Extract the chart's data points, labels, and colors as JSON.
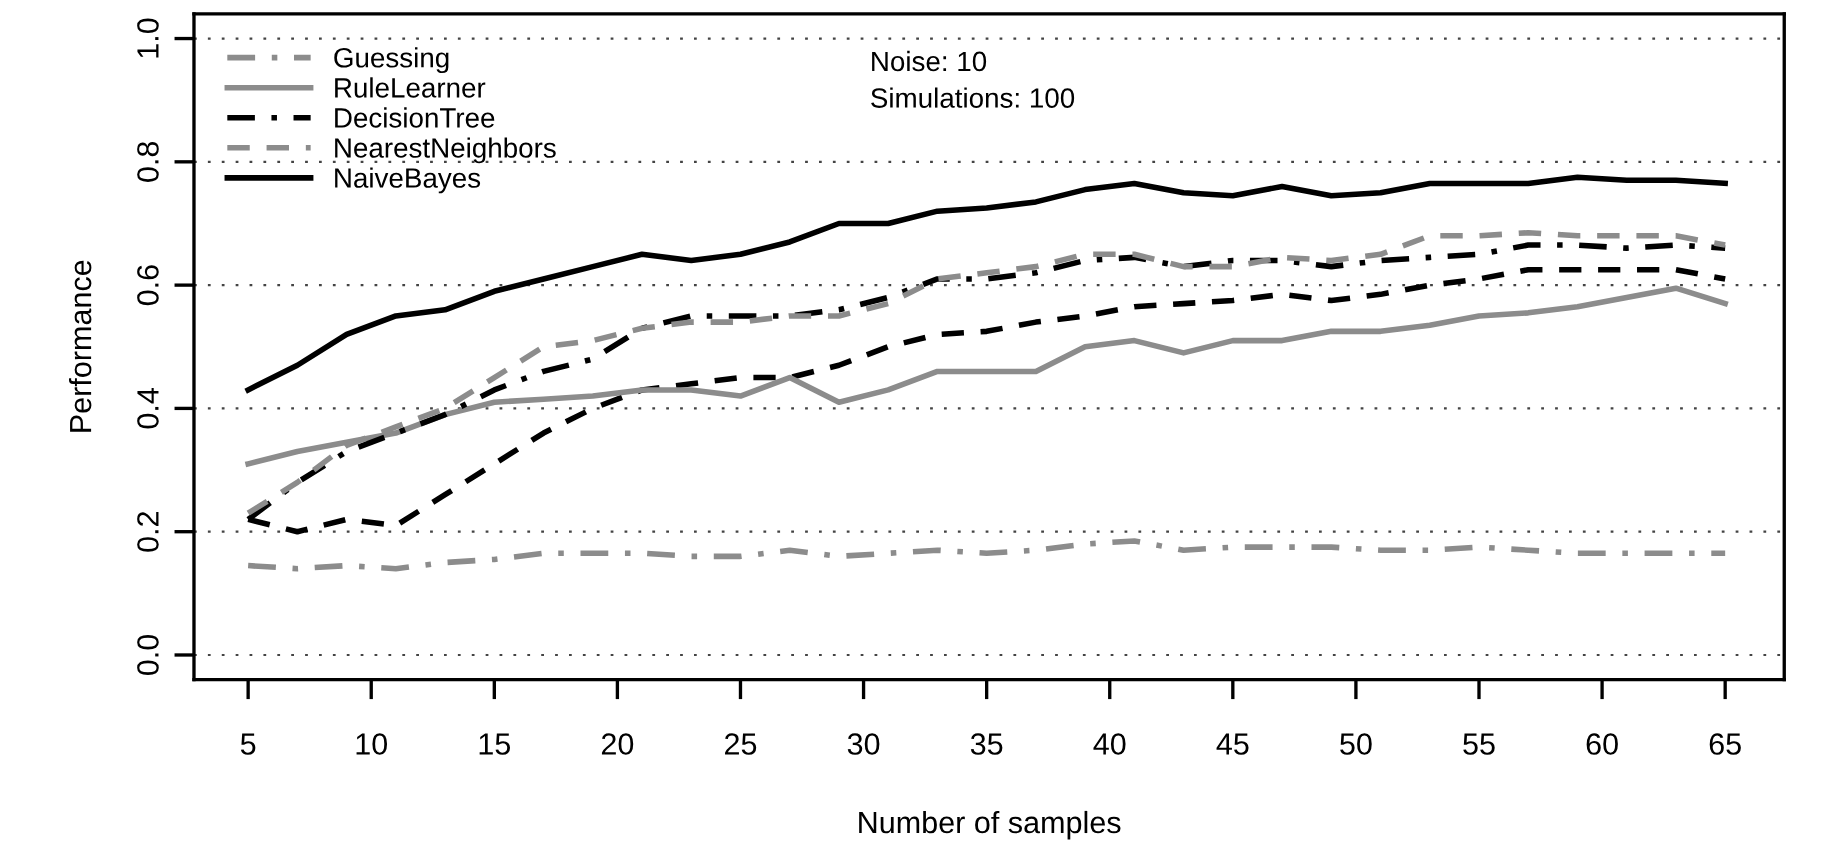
{
  "chart_data": {
    "type": "line",
    "xlabel": "Number of samples",
    "ylabel": "Performance",
    "x": [
      5,
      7,
      9,
      11,
      13,
      15,
      17,
      19,
      21,
      23,
      25,
      27,
      29,
      31,
      33,
      35,
      37,
      39,
      41,
      43,
      45,
      47,
      49,
      51,
      53,
      55,
      57,
      59,
      61,
      63,
      65
    ],
    "xlim": [
      2.8,
      67.4
    ],
    "ylim": [
      -0.04,
      1.04
    ],
    "xticks": [
      5,
      10,
      15,
      20,
      25,
      30,
      35,
      40,
      45,
      50,
      55,
      60,
      65
    ],
    "yticks": [
      {
        "value": 0,
        "label": "0.0"
      },
      {
        "value": 0.2,
        "label": "0.2"
      },
      {
        "value": 0.4,
        "label": "0.4"
      },
      {
        "value": 0.6,
        "label": "0.6"
      },
      {
        "value": 0.8,
        "label": "0.8"
      },
      {
        "value": 1,
        "label": "1.0"
      }
    ],
    "grid": "y",
    "legend": "top left",
    "marker": "none",
    "annotations": [
      "Noise: 10",
      "Simulations: 100"
    ],
    "series": [
      {
        "name": "Guessing",
        "color": "#8c8c8c",
        "line_style": "dashdot",
        "values": [
          0.145,
          0.14,
          0.145,
          0.14,
          0.15,
          0.155,
          0.165,
          0.165,
          0.165,
          0.16,
          0.16,
          0.17,
          0.16,
          0.165,
          0.17,
          0.165,
          0.17,
          0.18,
          0.185,
          0.17,
          0.175,
          0.175,
          0.175,
          0.17,
          0.17,
          0.175,
          0.17,
          0.165,
          0.165,
          0.165,
          0.165
        ]
      },
      {
        "color": "#000000",
        "line_style": "dashed",
        "values": [
          0.22,
          0.2,
          0.22,
          0.21,
          0.26,
          0.31,
          0.36,
          0.4,
          0.43,
          0.44,
          0.45,
          0.45,
          0.47,
          0.5,
          0.52,
          0.525,
          0.54,
          0.55,
          0.565,
          0.57,
          0.575,
          0.585,
          0.575,
          0.585,
          0.6,
          0.61,
          0.625,
          0.625,
          0.625,
          0.625,
          0.61
        ]
      },
      {
        "name": "RuleLearner",
        "color": "#8c8c8c",
        "line_style": "solid",
        "values": [
          0.31,
          0.33,
          0.345,
          0.36,
          0.39,
          0.41,
          0.415,
          0.42,
          0.43,
          0.43,
          0.42,
          0.45,
          0.41,
          0.43,
          0.46,
          0.46,
          0.46,
          0.5,
          0.51,
          0.49,
          0.51,
          0.51,
          0.525,
          0.525,
          0.535,
          0.55,
          0.555,
          0.565,
          0.58,
          0.595,
          0.57
        ]
      },
      {
        "name": "DecisionTree",
        "color": "#000000",
        "line_style": "dashdot",
        "values": [
          0.22,
          0.28,
          0.33,
          0.36,
          0.39,
          0.43,
          0.46,
          0.48,
          0.53,
          0.55,
          0.55,
          0.55,
          0.56,
          0.58,
          0.61,
          0.61,
          0.62,
          0.64,
          0.645,
          0.63,
          0.64,
          0.64,
          0.63,
          0.64,
          0.645,
          0.65,
          0.665,
          0.665,
          0.66,
          0.665,
          0.66
        ]
      },
      {
        "name": "NearestNeighbors",
        "color": "#8c8c8c",
        "line_style": "dashed",
        "values": [
          0.23,
          0.28,
          0.34,
          0.37,
          0.4,
          0.45,
          0.5,
          0.51,
          0.53,
          0.54,
          0.54,
          0.55,
          0.55,
          0.57,
          0.61,
          0.62,
          0.63,
          0.65,
          0.65,
          0.63,
          0.63,
          0.645,
          0.64,
          0.65,
          0.68,
          0.68,
          0.685,
          0.68,
          0.68,
          0.68,
          0.665
        ]
      },
      {
        "name": "NaiveBayes",
        "color": "#000000",
        "line_style": "solid",
        "values": [
          0.43,
          0.47,
          0.52,
          0.55,
          0.56,
          0.59,
          0.61,
          0.63,
          0.65,
          0.64,
          0.65,
          0.67,
          0.7,
          0.7,
          0.72,
          0.725,
          0.735,
          0.755,
          0.765,
          0.75,
          0.745,
          0.76,
          0.745,
          0.75,
          0.765,
          0.765,
          0.765,
          0.775,
          0.77,
          0.77,
          0.765
        ]
      }
    ]
  }
}
